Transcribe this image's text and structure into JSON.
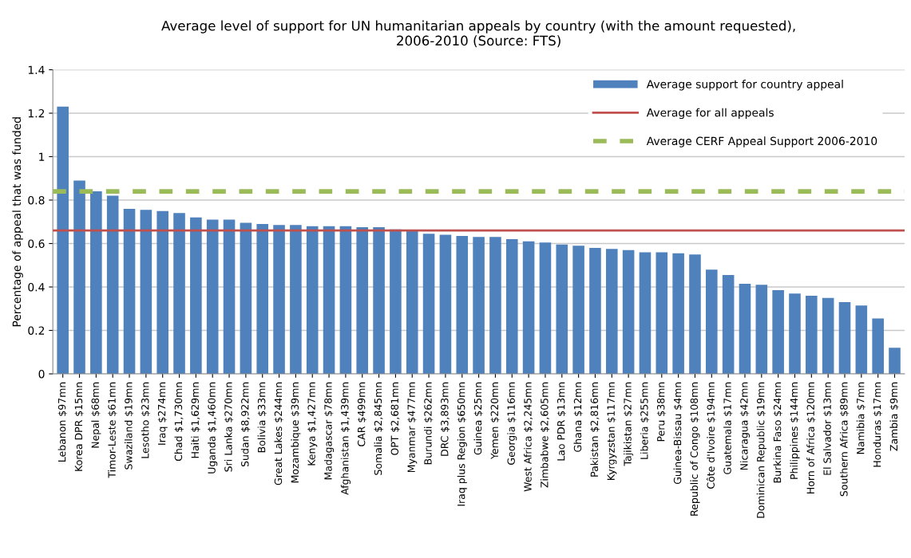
{
  "chart_data": {
    "type": "bar",
    "title": "Average level of support for UN humanitarian appeals by country (with the amount requested),\n2006-2010 (Source: FTS)",
    "ylabel": "Percentage of appeal that was funded",
    "categories": [
      "Lebanon $97mn",
      "Korea DPR $15mn",
      "Nepal $68mn",
      "Timor-Leste $61mn",
      "Swaziland $19mn",
      "Lesotho $23mn",
      "Iraq $274mn",
      "Chad $1,730mn",
      "Haiti $1,629mn",
      "Uganda $1,460mn",
      "Sri Lanka $270mn",
      "Sudan $8,922mn",
      "Bolivia $33mn",
      "Great Lakes $244mn",
      "Mozambique $39mn",
      "Kenya $1,427mn",
      "Madagascar $78mn",
      "Afghanistan $1,439mn",
      "CAR $499mn",
      "Somalia $2,845mn",
      "OPT $2,681mn",
      "Myanmar $477mn",
      "Burundi $262mn",
      "DRC $3,893mn",
      "Iraq plus Region $650mn",
      "Guinea $25mn",
      "Yemen $220mn",
      "Georgia $116mn",
      "West Africa $2,245mn",
      "Zimbabwe $2,605mn",
      "Lao PDR $13mn",
      "Ghana $12mn",
      "Pakistan $2,816mn",
      "Kyrgyzstan $117mn",
      "Tajikistan $27mn",
      "Liberia $255mn",
      "Peru $38mn",
      "Guinea-Bissau $4mn",
      "Republic of Congo $108mn",
      "Côte d'Ivoire $194mn",
      "Guatemala $17mn",
      "Nicaragua $42mn",
      "Dominican Republic $19mn",
      "Burkina Faso $24mn",
      "Philippines $144mn",
      "Horn of Africa $120mn",
      "El Salvador $13mn",
      "Southern Africa $89mn",
      "Namibia $7mn",
      "Honduras $17mn",
      "Zambia $9mn"
    ],
    "series": [
      {
        "name": "Average support for country appeal",
        "color": "#4f81bd",
        "values": [
          1.23,
          0.89,
          0.84,
          0.82,
          0.76,
          0.755,
          0.75,
          0.74,
          0.72,
          0.71,
          0.71,
          0.695,
          0.69,
          0.685,
          0.685,
          0.68,
          0.68,
          0.68,
          0.675,
          0.675,
          0.665,
          0.66,
          0.645,
          0.64,
          0.635,
          0.63,
          0.63,
          0.62,
          0.61,
          0.605,
          0.595,
          0.59,
          0.58,
          0.575,
          0.57,
          0.56,
          0.56,
          0.555,
          0.55,
          0.48,
          0.455,
          0.415,
          0.41,
          0.385,
          0.37,
          0.36,
          0.35,
          0.33,
          0.315,
          0.255,
          0.12
        ]
      }
    ],
    "ref_lines": [
      {
        "axis": "y",
        "value": 0.66,
        "label": "Average for all appeals",
        "color": "#c0504d",
        "line_style": "solid"
      },
      {
        "axis": "y",
        "value": 0.84,
        "label": "Average CERF Appeal Support 2006-2010",
        "color": "#9bbb59",
        "line_style": "dashed"
      }
    ],
    "ylim": [
      0,
      1.4
    ],
    "yticks": [
      0,
      0.2,
      0.4,
      0.6,
      0.8,
      1,
      1.2,
      1.4
    ],
    "grid": "y",
    "legend": "top right"
  }
}
